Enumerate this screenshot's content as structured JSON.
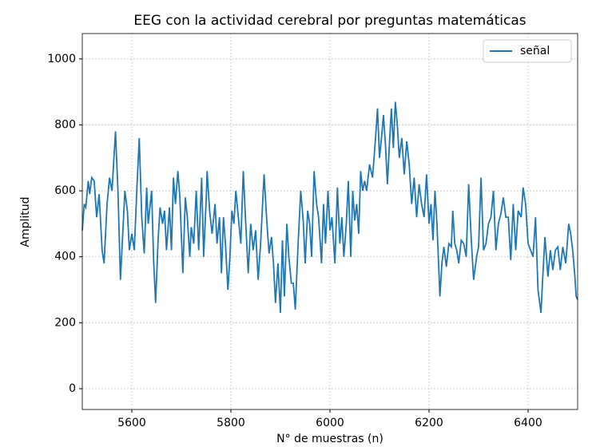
{
  "chart_data": {
    "type": "line",
    "title": "EEG con la actividad cerebral por preguntas matemáticas",
    "x_label": "N° de muestras (n)",
    "y_label": "Amplitud",
    "x": [
      5500,
      5504,
      5507,
      5512,
      5515,
      5519,
      5524,
      5529,
      5534,
      5540,
      5544,
      5550,
      5555,
      5560,
      5567,
      5572,
      5577,
      5582,
      5586,
      5591,
      5595,
      5600,
      5605,
      5610,
      5615,
      5620,
      5625,
      5630,
      5633,
      5640,
      5644,
      5648,
      5653,
      5657,
      5662,
      5666,
      5670,
      5676,
      5680,
      5684,
      5688,
      5693,
      5697,
      5703,
      5708,
      5712,
      5717,
      5720,
      5725,
      5730,
      5735,
      5741,
      5745,
      5750,
      5752,
      5757,
      5762,
      5768,
      5772,
      5777,
      5781,
      5785,
      5789,
      5794,
      5798,
      5802,
      5806,
      5810,
      5815,
      5820,
      5825,
      5830,
      5835,
      5840,
      5845,
      5850,
      5855,
      5860,
      5867,
      5872,
      5877,
      5882,
      5886,
      5890,
      5895,
      5900,
      5904,
      5908,
      5913,
      5917,
      5922,
      5926,
      5930,
      5936,
      5941,
      5946,
      5950,
      5955,
      5959,
      5963,
      5968,
      5973,
      5977,
      5983,
      5987,
      5991,
      5996,
      6000,
      6004,
      6010,
      6015,
      6020,
      6024,
      6028,
      6033,
      6037,
      6042,
      6046,
      6050,
      6054,
      6058,
      6062,
      6066,
      6070,
      6074,
      6080,
      6086,
      6092,
      6096,
      6100,
      6104,
      6108,
      6112,
      6116,
      6120,
      6124,
      6128,
      6132,
      6136,
      6140,
      6145,
      6150,
      6155,
      6160,
      6165,
      6170,
      6175,
      6180,
      6185,
      6190,
      6195,
      6200,
      6204,
      6208,
      6212,
      6216,
      6222,
      6226,
      6230,
      6235,
      6240,
      6245,
      6248,
      6252,
      6256,
      6260,
      6265,
      6270,
      6275,
      6280,
      6285,
      6290,
      6296,
      6300,
      6305,
      6310,
      6315,
      6320,
      6325,
      6330,
      6335,
      6340,
      6345,
      6350,
      6355,
      6360,
      6365,
      6370,
      6375,
      6380,
      6386,
      6390,
      6395,
      6400,
      6405,
      6410,
      6415,
      6420,
      6426,
      6430,
      6434,
      6440,
      6445,
      6450,
      6455,
      6460,
      6465,
      6470,
      6476,
      6482,
      6486,
      6490,
      6494,
      6497,
      6500
    ],
    "series": [
      {
        "name": "señal",
        "color": "#1f77b4",
        "values": [
          480,
          560,
          550,
          630,
          590,
          640,
          630,
          520,
          590,
          420,
          380,
          560,
          640,
          600,
          780,
          600,
          330,
          480,
          600,
          540,
          420,
          470,
          420,
          600,
          760,
          520,
          410,
          610,
          500,
          600,
          390,
          260,
          450,
          550,
          500,
          540,
          420,
          550,
          420,
          640,
          560,
          660,
          580,
          350,
          580,
          520,
          400,
          490,
          440,
          600,
          420,
          640,
          400,
          570,
          660,
          540,
          470,
          560,
          440,
          520,
          350,
          520,
          440,
          300,
          400,
          540,
          500,
          600,
          520,
          440,
          660,
          500,
          350,
          500,
          420,
          480,
          330,
          440,
          650,
          520,
          410,
          460,
          380,
          260,
          380,
          230,
          450,
          280,
          500,
          400,
          320,
          320,
          240,
          450,
          600,
          510,
          380,
          540,
          500,
          400,
          660,
          560,
          520,
          380,
          560,
          440,
          600,
          480,
          520,
          380,
          610,
          440,
          520,
          400,
          500,
          630,
          400,
          600,
          510,
          560,
          470,
          660,
          600,
          630,
          600,
          680,
          640,
          760,
          850,
          700,
          760,
          830,
          740,
          620,
          740,
          850,
          730,
          870,
          800,
          700,
          760,
          650,
          750,
          680,
          560,
          640,
          520,
          620,
          560,
          520,
          650,
          500,
          560,
          450,
          600,
          500,
          280,
          380,
          430,
          370,
          440,
          430,
          540,
          440,
          420,
          380,
          450,
          440,
          400,
          620,
          460,
          330,
          400,
          430,
          640,
          420,
          440,
          500,
          520,
          600,
          420,
          500,
          530,
          580,
          520,
          520,
          390,
          560,
          420,
          540,
          520,
          610,
          560,
          440,
          420,
          400,
          520,
          300,
          230,
          350,
          460,
          340,
          420,
          360,
          420,
          430,
          360,
          430,
          380,
          500,
          470,
          420,
          350,
          280,
          270
        ]
      }
    ],
    "xlim": [
      5500,
      6500
    ],
    "ylim": [
      -63,
      1077
    ],
    "xticks": [
      5600,
      5800,
      6000,
      6200,
      6400
    ],
    "yticks": [
      0,
      200,
      400,
      600,
      800,
      1000
    ],
    "grid": true,
    "legend": "upper right"
  }
}
